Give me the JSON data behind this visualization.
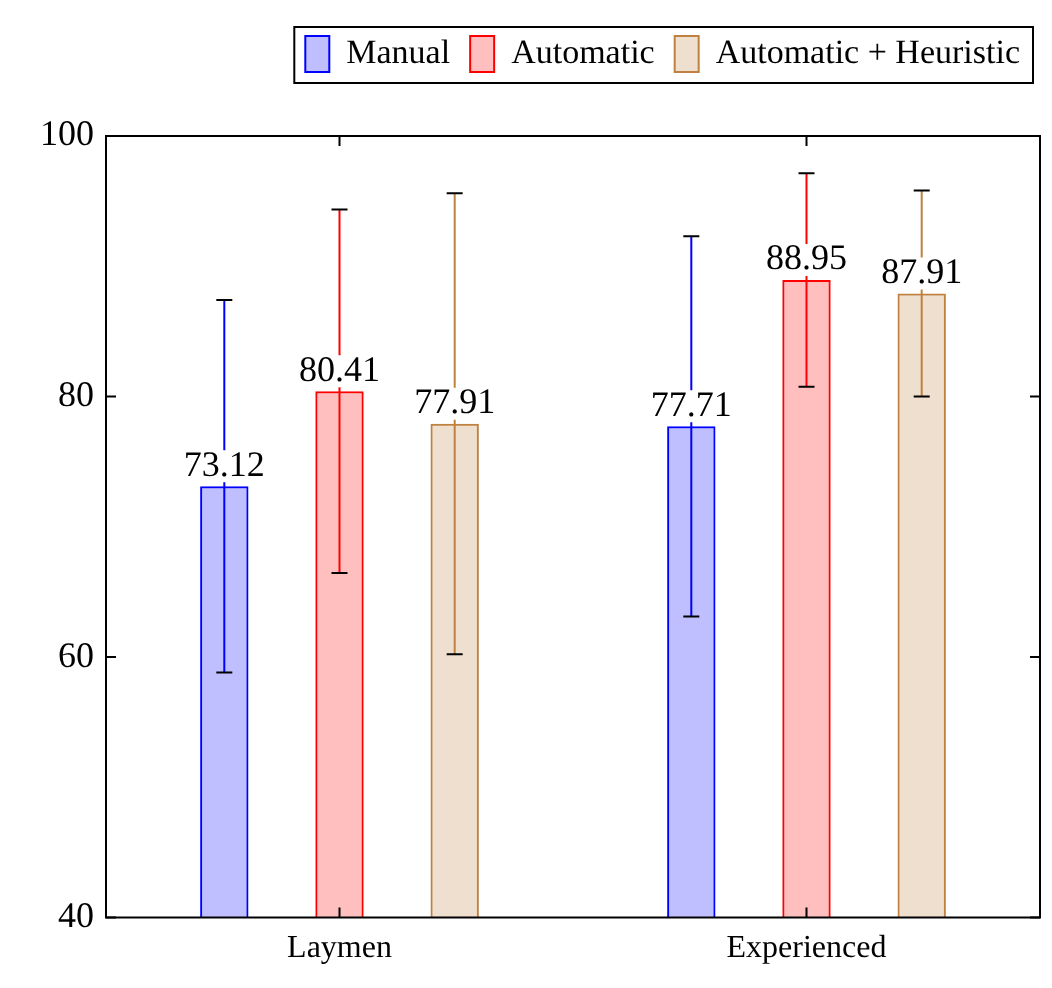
{
  "chart_data": {
    "type": "bar",
    "categories": [
      "Laymen",
      "Experienced"
    ],
    "series": [
      {
        "name": "Manual",
        "color": "#0000ff",
        "values": [
          73.12,
          77.71
        ],
        "errors": [
          14.3,
          14.6
        ]
      },
      {
        "name": "Automatic",
        "color": "#ff0000",
        "values": [
          80.41,
          88.95
        ],
        "errors": [
          13.95,
          8.2
        ]
      },
      {
        "name": "Automatic + Heuristic",
        "color": "#bf8040",
        "values": [
          77.91,
          87.91
        ],
        "errors": [
          17.7,
          7.9
        ]
      }
    ],
    "ylim": [
      40,
      100
    ],
    "yticks": [
      40,
      60,
      80,
      100
    ],
    "grid": false,
    "legend": "top",
    "data_labels": true
  }
}
